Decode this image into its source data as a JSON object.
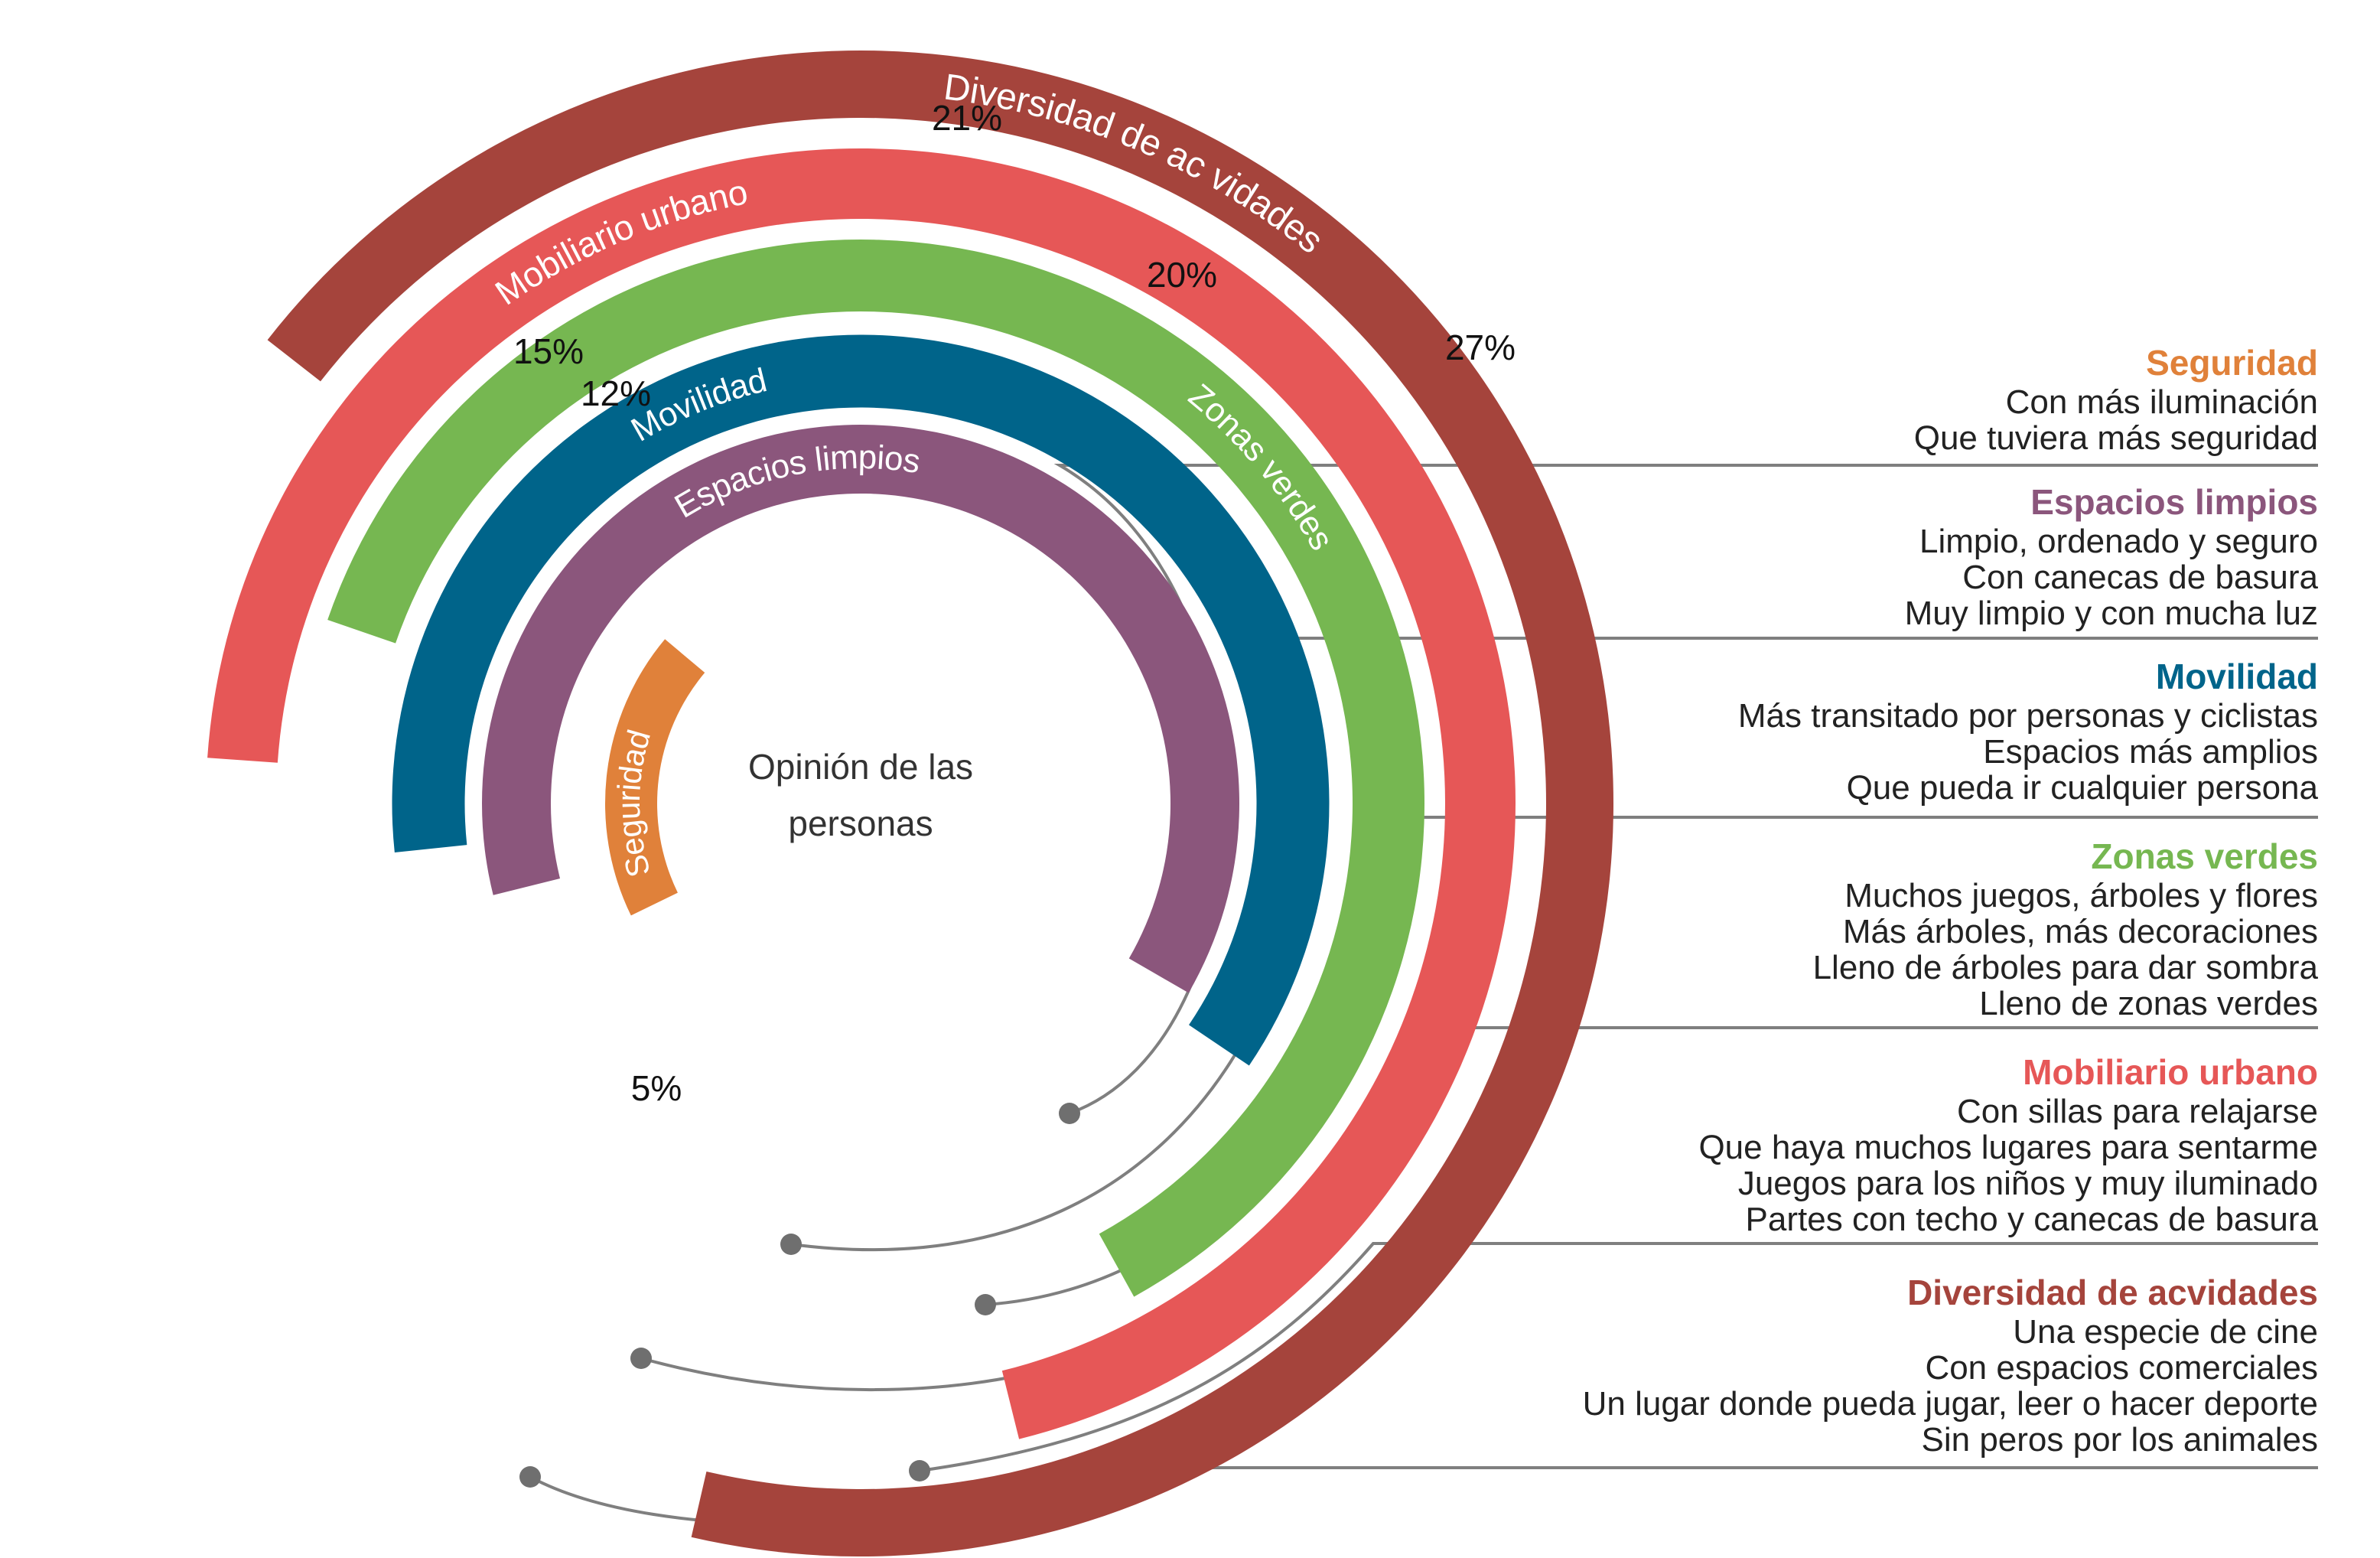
{
  "chart_data": {
    "type": "radial_bar",
    "title": "Opinión de las personas",
    "title_lines": [
      "Opinión de las",
      "personas"
    ],
    "unit": "%",
    "series": [
      {
        "key": "seguridad",
        "name": "Seguridad",
        "value": 5,
        "color": "#e0813a",
        "legend_title": "Seguridad",
        "comments": [
          "Con más iluminación",
          "Que tuviera más seguridad"
        ]
      },
      {
        "key": "espacios",
        "name": "Espacios limpios",
        "value": 12,
        "color": "#8b567c",
        "legend_title": "Espacios limpios",
        "comments": [
          "Limpio, ordenado y seguro",
          "Con canecas de basura",
          "Muy limpio y con mucha luz"
        ]
      },
      {
        "key": "movilidad",
        "name": "Movilidad",
        "value": 15,
        "color": "#00648a",
        "legend_title": "Movilidad",
        "comments": [
          "Más transitado por personas y ciclistas",
          "Espacios más amplios",
          "Que pueda ir cualquier persona"
        ]
      },
      {
        "key": "zonas",
        "name": "Zonas verdes",
        "value": 20,
        "color": "#76b751",
        "legend_title": "Zonas verdes",
        "comments": [
          "Muchos juegos, árboles y flores",
          "Más árboles, más decoraciones",
          "Lleno de árboles para dar sombra",
          "Lleno de zonas verdes"
        ]
      },
      {
        "key": "mobiliario",
        "name": "Mobiliario urbano",
        "value": 21,
        "color": "#e65757",
        "legend_title": "Mobiliario urbano",
        "comments": [
          "Con sillas para relajarse",
          "Que haya muchos lugares para sentarme",
          "Juegos para los niños y muy iluminado",
          "Partes con techo y canecas de basura"
        ]
      },
      {
        "key": "diversidad",
        "name": "Diversidad de ac  vidades",
        "value": 27,
        "color": "#a5443c",
        "legend_title": "Diversidad de acvidades",
        "comments": [
          "Una especie de cine",
          "Con espacios comerciales",
          "Un lugar donde pueda jugar, leer o hacer deporte",
          "Sin peros por los animales"
        ]
      }
    ]
  }
}
